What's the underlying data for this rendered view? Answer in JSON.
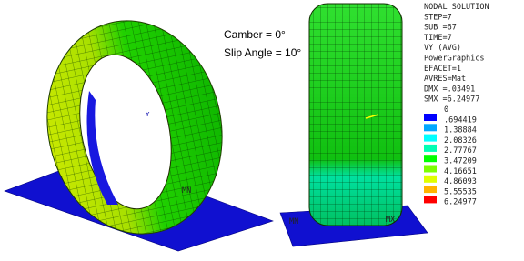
{
  "annotation": {
    "lines": [
      "Camber = 0°",
      "Slip Angle = 10°"
    ]
  },
  "legend": {
    "header": [
      "NODAL SOLUTION",
      "STEP=7",
      "SUB =67",
      "TIME=7",
      "VY       (AVG)",
      "PowerGraphics",
      "EFACET=1",
      "AVRES=Mat",
      "DMX =.03491",
      "SMX =6.24977"
    ],
    "values": [
      "0",
      ".694419",
      "1.38884",
      "2.08326",
      "2.77767",
      "3.47209",
      "4.16651",
      "4.86093",
      "5.55535",
      "6.24977"
    ],
    "colors": [
      "#0000ff",
      "#00a8ff",
      "#00ffff",
      "#00ffb4",
      "#00ff00",
      "#7cff00",
      "#e0ff00",
      "#ffb400",
      "#ff0000"
    ]
  },
  "markers": {
    "min": "MN",
    "max": "MX"
  }
}
